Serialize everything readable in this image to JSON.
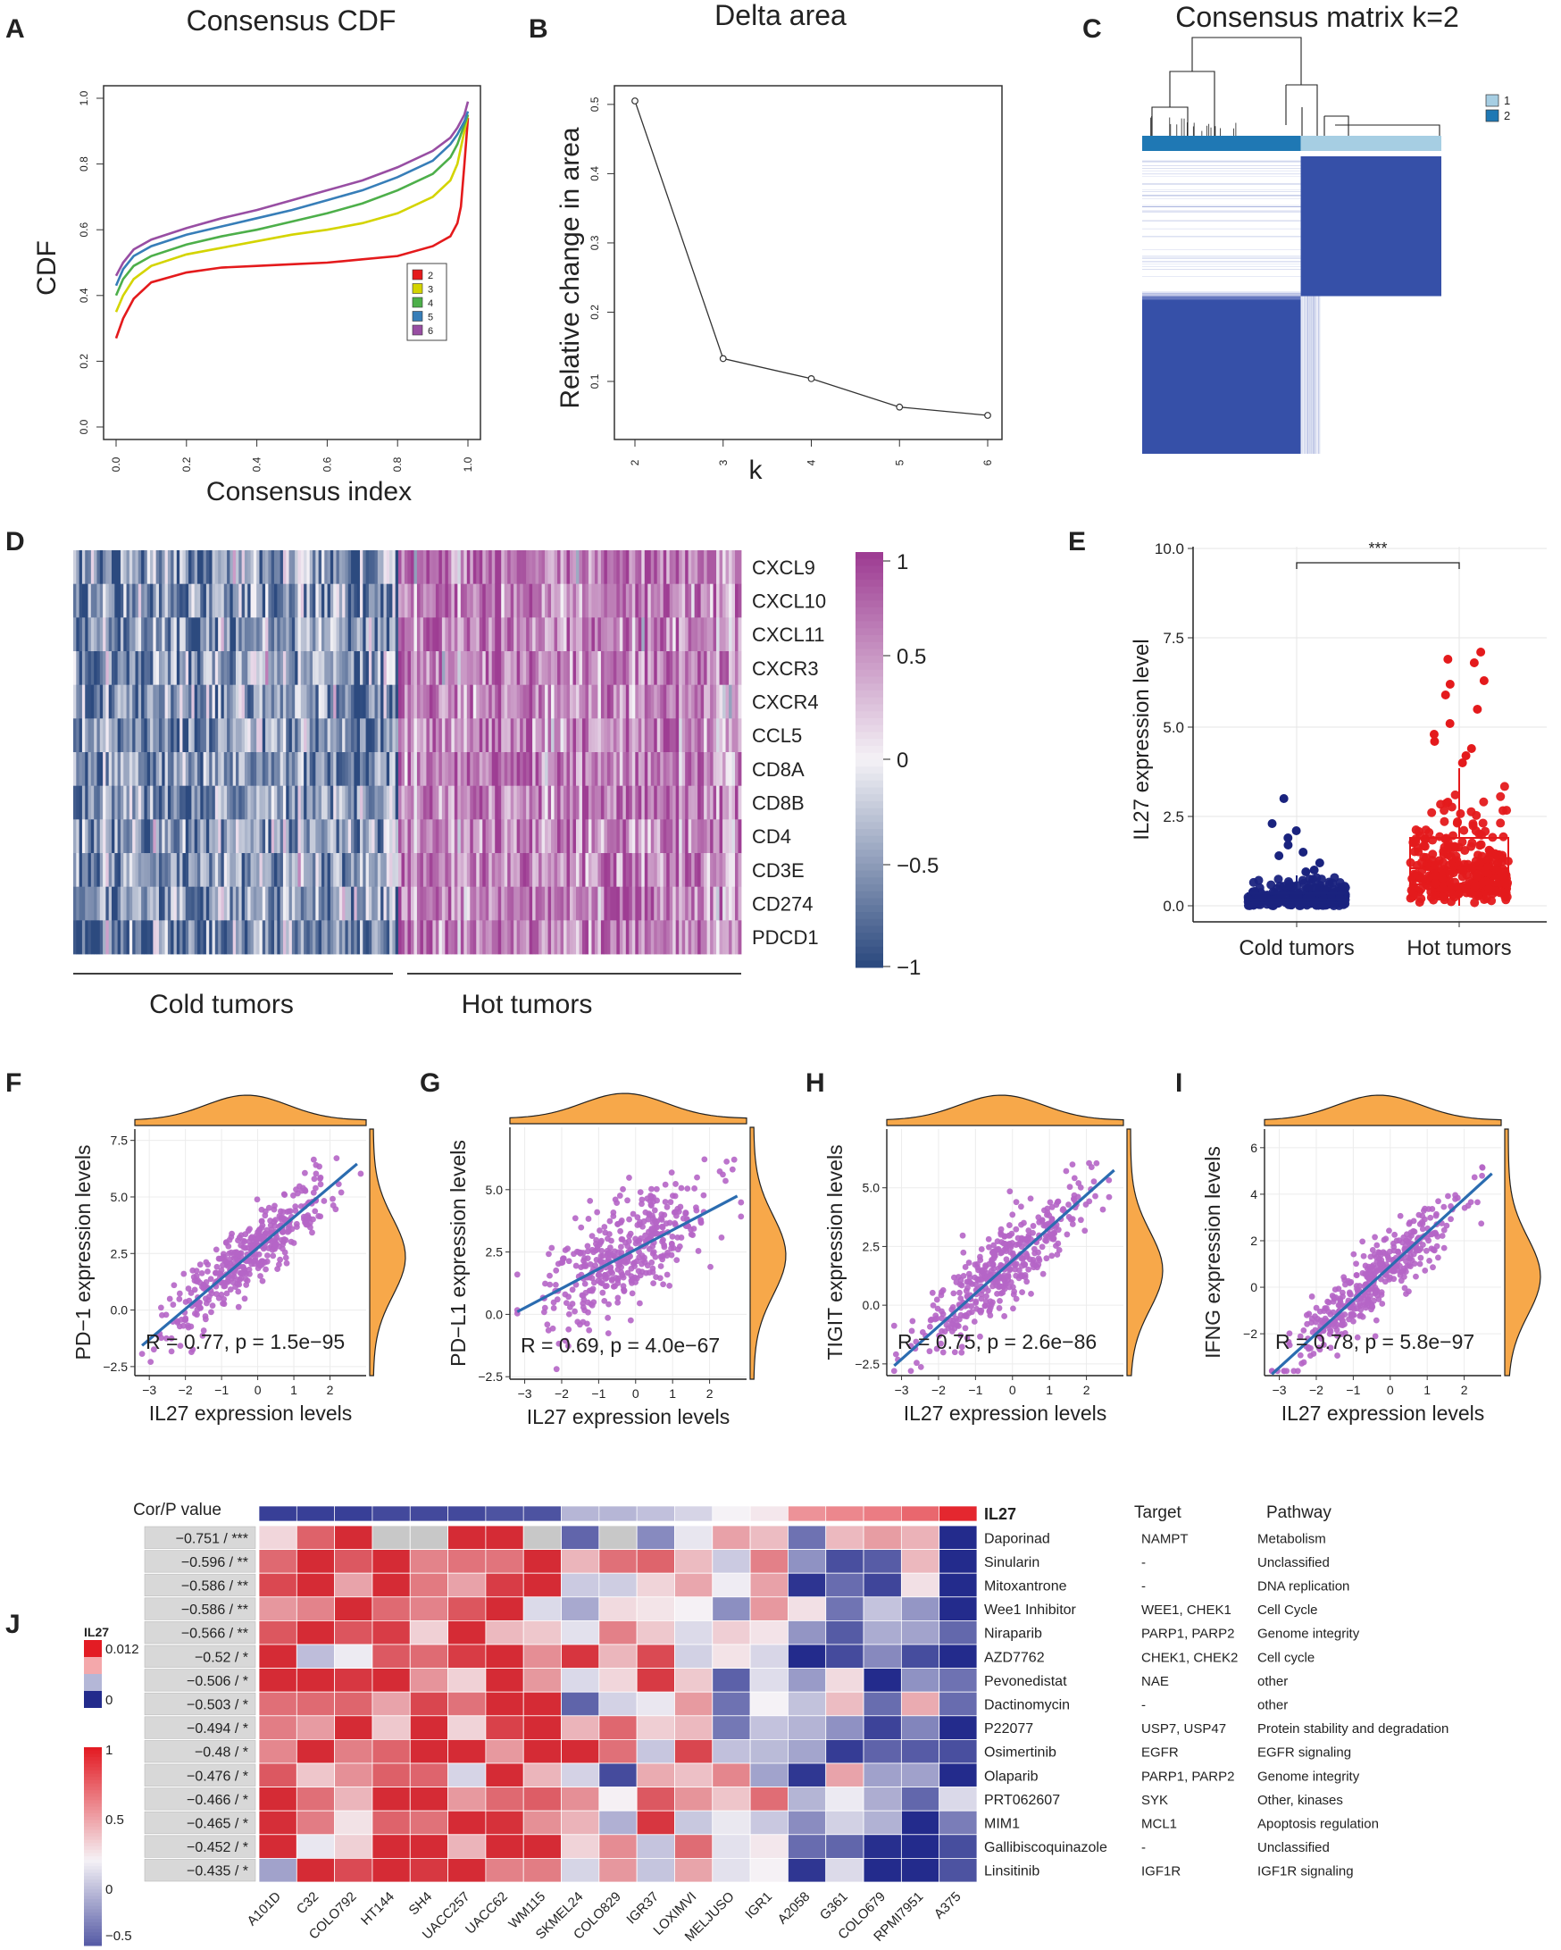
{
  "panel_letters": [
    "A",
    "B",
    "C",
    "D",
    "E",
    "F",
    "G",
    "H",
    "I",
    "J"
  ],
  "chart_data": [
    {
      "panel": "A",
      "type": "line",
      "title": "Consensus CDF",
      "xlabel": "Consensus index",
      "ylabel": "CDF",
      "xlim": [
        0,
        1
      ],
      "ylim": [
        0,
        1
      ],
      "x_ticks": [
        "0.0",
        "0.2",
        "0.4",
        "0.6",
        "0.8",
        "1.0"
      ],
      "y_ticks": [
        "0.0",
        "0.2",
        "0.4",
        "0.6",
        "0.8",
        "1.0"
      ],
      "legend_position": "right",
      "x": [
        0,
        0.02,
        0.05,
        0.1,
        0.2,
        0.3,
        0.4,
        0.5,
        0.6,
        0.7,
        0.8,
        0.9,
        0.95,
        0.97,
        0.98,
        0.99,
        1.0
      ],
      "series": [
        {
          "name": "2",
          "color": "#e41a1c",
          "values": [
            0.27,
            0.33,
            0.39,
            0.44,
            0.47,
            0.485,
            0.49,
            0.495,
            0.5,
            0.51,
            0.52,
            0.55,
            0.58,
            0.62,
            0.67,
            0.8,
            0.94
          ]
        },
        {
          "name": "3",
          "color": "#d4d400",
          "values": [
            0.35,
            0.4,
            0.45,
            0.49,
            0.525,
            0.545,
            0.565,
            0.585,
            0.6,
            0.62,
            0.65,
            0.7,
            0.75,
            0.8,
            0.85,
            0.9,
            0.95
          ]
        },
        {
          "name": "4",
          "color": "#4daf4a",
          "values": [
            0.4,
            0.45,
            0.49,
            0.52,
            0.555,
            0.58,
            0.6,
            0.625,
            0.65,
            0.68,
            0.72,
            0.77,
            0.82,
            0.86,
            0.89,
            0.92,
            0.95
          ]
        },
        {
          "name": "5",
          "color": "#377eb8",
          "values": [
            0.43,
            0.48,
            0.52,
            0.55,
            0.585,
            0.61,
            0.635,
            0.66,
            0.69,
            0.72,
            0.76,
            0.81,
            0.86,
            0.89,
            0.91,
            0.93,
            0.96
          ]
        },
        {
          "name": "6",
          "color": "#984ea3",
          "values": [
            0.46,
            0.5,
            0.54,
            0.57,
            0.605,
            0.635,
            0.66,
            0.69,
            0.72,
            0.75,
            0.79,
            0.84,
            0.88,
            0.91,
            0.93,
            0.95,
            0.99
          ]
        }
      ]
    },
    {
      "panel": "B",
      "type": "line",
      "title": "Delta area",
      "xlabel": "k",
      "ylabel": "Relative change in area",
      "x": [
        2,
        3,
        4,
        5,
        6
      ],
      "values": [
        0.505,
        0.133,
        0.104,
        0.063,
        0.051
      ],
      "x_ticks": [
        "2",
        "3",
        "4",
        "5",
        "6"
      ],
      "y_ticks": [
        "0.1",
        "0.2",
        "0.3",
        "0.4",
        "0.5"
      ],
      "xlim": [
        2,
        6
      ],
      "ylim": [
        0.04,
        0.52
      ]
    },
    {
      "panel": "C",
      "type": "heatmap",
      "title": "Consensus matrix k=2",
      "legend": [
        {
          "label": "1",
          "color": "#a6cee3"
        },
        {
          "label": "2",
          "color": "#1f78b4"
        }
      ],
      "cluster_split_fraction": 0.53
    },
    {
      "panel": "D",
      "type": "heatmap",
      "rows": [
        "CXCL9",
        "CXCL10",
        "CXCL11",
        "CXCR3",
        "CXCR4",
        "CCL5",
        "CD8A",
        "CD8B",
        "CD4",
        "CD3E",
        "CD274",
        "PDCD1"
      ],
      "groups": [
        "Cold tumors",
        "Hot tumors"
      ],
      "colorbar_ticks": [
        "1",
        "0.5",
        "0",
        "−0.5",
        "−1"
      ],
      "color_range": [
        -1,
        1
      ],
      "group_mean": [
        -0.55,
        0.6
      ]
    },
    {
      "panel": "E",
      "type": "box",
      "ylabel": "IL27 expression level",
      "categories": [
        "Cold tumors",
        "Hot tumors"
      ],
      "y_ticks": [
        "0.0",
        "2.5",
        "5.0",
        "7.5",
        "10.0"
      ],
      "ylim": [
        0,
        10
      ],
      "significance": "***",
      "series": [
        {
          "name": "Cold tumors",
          "color": "#1a237e",
          "q1": 0.08,
          "median": 0.18,
          "q3": 0.35,
          "whisker_low": 0,
          "whisker_high": 0.85,
          "outliers": [
            0.95,
            1.0,
            1.2,
            1.4,
            1.5,
            1.7,
            1.9,
            2.1,
            2.3,
            3.0
          ]
        },
        {
          "name": "Hot tumors",
          "color": "#e41a1c",
          "q1": 0.6,
          "median": 1.05,
          "q3": 1.9,
          "whisker_low": 0,
          "whisker_high": 3.85,
          "outliers": [
            4.0,
            4.2,
            4.4,
            4.6,
            4.8,
            5.1,
            5.5,
            5.9,
            6.2,
            6.3,
            6.8,
            6.9,
            7.1
          ]
        }
      ]
    },
    {
      "panel": "F",
      "type": "scatter",
      "xlabel": "IL27 expression levels",
      "ylabel": "PD−1 expression levels",
      "annotation": "R = 0.77, p = 1.5e−95",
      "xlim": [
        -3.4,
        3.0
      ],
      "ylim": [
        -2.9,
        8.0
      ],
      "x_ticks": [
        "−3",
        "−2",
        "−1",
        "0",
        "1",
        "2"
      ],
      "y_ticks": [
        "−2.5",
        "0.0",
        "2.5",
        "5.0",
        "7.5"
      ],
      "y_tick_values": [
        -2.5,
        0,
        2.5,
        5,
        7.5
      ],
      "fit": {
        "slope": 1.35,
        "intercept": 2.75
      },
      "r": 0.77
    },
    {
      "panel": "G",
      "type": "scatter",
      "xlabel": "IL27 expression levels",
      "ylabel": "PD−L1 expression levels",
      "annotation": "R = 0.69, p = 4.0e−67",
      "xlim": [
        -3.4,
        3.0
      ],
      "ylim": [
        -2.6,
        7.5
      ],
      "x_ticks": [
        "−3",
        "−2",
        "−1",
        "0",
        "1",
        "2"
      ],
      "y_ticks": [
        "−2.5",
        "0.0",
        "2.5",
        "5.0"
      ],
      "y_tick_values": [
        -2.5,
        0,
        2.5,
        5
      ],
      "fit": {
        "slope": 0.78,
        "intercept": 2.6
      },
      "r": 0.69
    },
    {
      "panel": "H",
      "type": "scatter",
      "xlabel": "IL27 expression levels",
      "ylabel": "TIGIT expression levels",
      "annotation": "R = 0.75, p = 2.6e−86",
      "xlim": [
        -3.4,
        3.0
      ],
      "ylim": [
        -3.0,
        7.5
      ],
      "x_ticks": [
        "−3",
        "−2",
        "−1",
        "0",
        "1",
        "2"
      ],
      "y_ticks": [
        "−2.5",
        "0.0",
        "2.5",
        "5.0"
      ],
      "y_tick_values": [
        -2.5,
        0,
        2.5,
        5
      ],
      "fit": {
        "slope": 1.4,
        "intercept": 1.9
      },
      "r": 0.75
    },
    {
      "panel": "I",
      "type": "scatter",
      "xlabel": "IL27 expression levels",
      "ylabel": "IFNG expression levels",
      "annotation": "R = 0.78, p = 5.8e−97",
      "xlim": [
        -3.4,
        3.0
      ],
      "ylim": [
        -3.8,
        6.8
      ],
      "x_ticks": [
        "−3",
        "−2",
        "−1",
        "0",
        "1",
        "2"
      ],
      "y_ticks": [
        "−2",
        "0",
        "2",
        "4",
        "6"
      ],
      "y_tick_values": [
        -2,
        0,
        2,
        4,
        6
      ],
      "fit": {
        "slope": 1.45,
        "intercept": 0.9
      },
      "r": 0.78
    },
    {
      "panel": "J",
      "type": "heatmap",
      "top_row_label": "IL27",
      "header": "Cor/P value",
      "legend_top_title": "IL27",
      "legend_top_ticks": [
        "0.012",
        "0"
      ],
      "legend_bottom_ticks": [
        "1",
        "0.5",
        "0",
        "−0.5"
      ],
      "columns": [
        "A101D",
        "C32",
        "COLO792",
        "HT144",
        "SH4",
        "UACC257",
        "UACC62",
        "WM115",
        "SKMEL24",
        "COLO829",
        "IGR37",
        "LOXIMVI",
        "MELJUSO",
        "IGR1",
        "A2058",
        "G361",
        "COLO679",
        "RPMI7951",
        "A375"
      ],
      "il27_values": [
        -0.9,
        -0.9,
        -0.9,
        -0.85,
        -0.85,
        -0.85,
        -0.8,
        -0.8,
        -0.3,
        -0.3,
        -0.25,
        -0.15,
        0.0,
        0.05,
        0.45,
        0.5,
        0.55,
        0.65,
        0.95
      ],
      "rows": [
        {
          "cor": "−0.751 / ***",
          "drug": "Daporinad",
          "target": "NAMPT",
          "pathway": "Metabolism"
        },
        {
          "cor": "−0.596 / **",
          "drug": "Sinularin",
          "target": "-",
          "pathway": "Unclassified"
        },
        {
          "cor": "−0.586 / **",
          "drug": "Mitoxantrone",
          "target": "-",
          "pathway": "DNA replication"
        },
        {
          "cor": "−0.586 / **",
          "drug": "Wee1 Inhibitor",
          "target": "WEE1, CHEK1",
          "pathway": "Cell Cycle"
        },
        {
          "cor": "−0.566 / **",
          "drug": "Niraparib",
          "target": "PARP1, PARP2",
          "pathway": "Genome integrity"
        },
        {
          "cor": "−0.52 / *",
          "drug": "AZD7762",
          "target": "CHEK1, CHEK2",
          "pathway": "Cell cycle"
        },
        {
          "cor": "−0.506 / *",
          "drug": "Pevonedistat",
          "target": "NAE",
          "pathway": "other"
        },
        {
          "cor": "−0.503 / *",
          "drug": "Dactinomycin",
          "target": "-",
          "pathway": "other"
        },
        {
          "cor": "−0.494 / *",
          "drug": "P22077",
          "target": "USP7, USP47",
          "pathway": "Protein stability and degradation"
        },
        {
          "cor": "−0.48 / *",
          "drug": "Osimertinib",
          "target": "EGFR",
          "pathway": "EGFR signaling"
        },
        {
          "cor": "−0.476 / *",
          "drug": "Olaparib",
          "target": "PARP1, PARP2",
          "pathway": "Genome integrity"
        },
        {
          "cor": "−0.466 / *",
          "drug": "PRT062607",
          "target": "SYK",
          "pathway": "Other, kinases"
        },
        {
          "cor": "−0.465 / *",
          "drug": "MIM1",
          "target": "MCL1",
          "pathway": "Apoptosis regulation"
        },
        {
          "cor": "−0.452 / *",
          "drug": "Gallibiscoquinazole",
          "target": "-",
          "pathway": "Unclassified"
        },
        {
          "cor": "−0.435 / *",
          "drug": "Linsitinib",
          "target": "IGF1R",
          "pathway": "IGF1R signaling"
        }
      ],
      "target_header": "Target",
      "pathway_header": "Pathway"
    }
  ]
}
